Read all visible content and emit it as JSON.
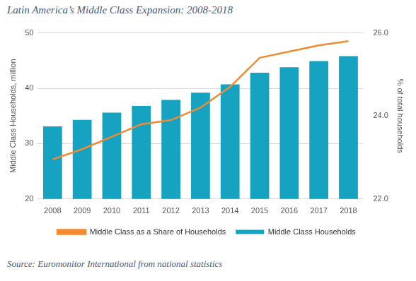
{
  "chart_data": {
    "type": "bar",
    "title": "Latin America’s Middle Class Expansion: 2008-2018",
    "source": "Source: Euromonitor International from national statistics",
    "ylabel": "Middle Class Households, million",
    "y2label": "% of total households",
    "categories": [
      "2008",
      "2009",
      "2010",
      "2011",
      "2012",
      "2013",
      "2014",
      "2015",
      "2016",
      "2017",
      "2018"
    ],
    "series": [
      {
        "name": "Middle Class Households",
        "type": "bar",
        "color": "#16a3c2",
        "values": [
          33.1,
          34.3,
          35.6,
          36.8,
          37.9,
          39.2,
          40.7,
          42.8,
          43.8,
          44.9,
          45.8
        ]
      },
      {
        "name": "Middle Class as a Share of Households",
        "type": "line",
        "axis": "y2",
        "color": "#f28a30",
        "marker": "none",
        "line_style": "solid",
        "values": [
          22.95,
          23.2,
          23.5,
          23.8,
          23.9,
          24.2,
          24.7,
          25.4,
          25.55,
          25.7,
          25.8
        ]
      }
    ],
    "ylim": [
      20,
      50
    ],
    "yticks": [
      20,
      30,
      40,
      50
    ],
    "y2lim": [
      22,
      26
    ],
    "y2ticks": [
      {
        "value": 22,
        "label": "22.0"
      },
      {
        "value": 24,
        "label": "24.0"
      },
      {
        "value": 26,
        "label": "26.0"
      }
    ],
    "grid": true,
    "legend": "bottom"
  }
}
